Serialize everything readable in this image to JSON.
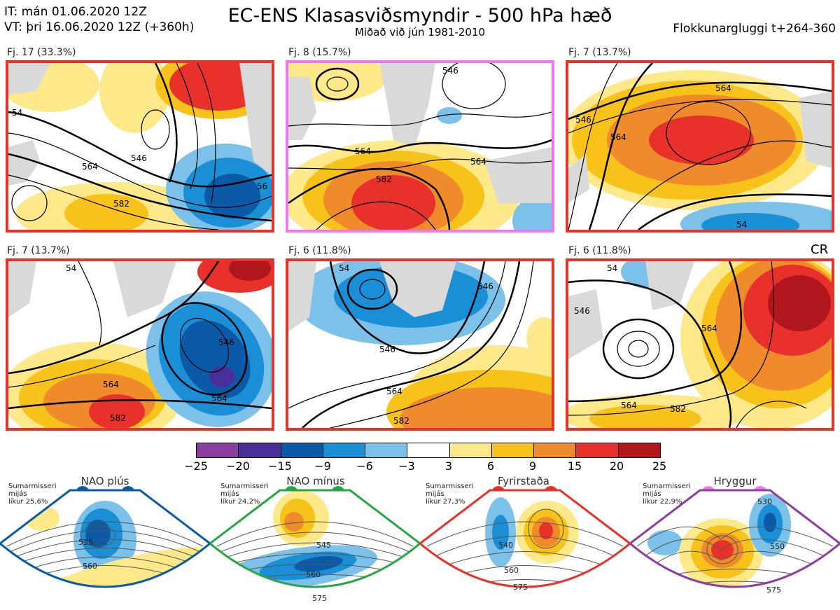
{
  "header": {
    "it_line": "IT: mán 01.06.2020 12Z",
    "vt_line": "VT: þri 16.06.2020 12Z  (+360h)",
    "title": "EC-ENS Klasasviðsmyndir - 500 hPa hæð",
    "subtitle": "Miðað við jún 1981-2010",
    "window": "Flokkunargluggi t+264-360"
  },
  "panels": [
    {
      "label": "Fj. 17 (33.3%)",
      "border": "#e8312a",
      "contours": [
        "546",
        "564",
        "582",
        "54",
        "56"
      ]
    },
    {
      "label": "Fj. 8 (15.7%)",
      "border": "#ee77ee",
      "contours": [
        "564",
        "582",
        "564",
        "546"
      ]
    },
    {
      "label": "Fj. 7 (13.7%)",
      "border": "#e8312a",
      "contours": [
        "564",
        "546",
        "564",
        "54"
      ]
    },
    {
      "label": "Fj. 7 (13.7%)",
      "border": "#e8312a",
      "contours": [
        "564",
        "546",
        "564",
        "582",
        "54"
      ]
    },
    {
      "label": "Fj. 6 (11.8%)",
      "border": "#e8312a",
      "contours": [
        "546",
        "564",
        "582",
        "546",
        "54"
      ]
    },
    {
      "label": "Fj. 6 (11.8%)",
      "border": "#e8312a",
      "contours": [
        "564",
        "546",
        "564",
        "582",
        "54"
      ],
      "tag": "CR"
    }
  ],
  "colorbar": {
    "ticks": [
      "−25",
      "−20",
      "−15",
      "−9",
      "−6",
      "−3",
      "3",
      "6",
      "9",
      "15",
      "20",
      "25"
    ],
    "colors": [
      "#8c3f9e",
      "#4a2f9a",
      "#0b5aa8",
      "#1b8fd6",
      "#7cc1ea",
      "#ffffff",
      "#fde98a",
      "#f7c21a",
      "#f08b2b",
      "#e8312a",
      "#b0161c"
    ]
  },
  "regimes": [
    {
      "title": "NAO plús",
      "line1": "Sumarmisseri",
      "line2": "mijás",
      "line3": "líkur 25,6%",
      "color": "#0b5aa8",
      "c1": "535",
      "c2": "560"
    },
    {
      "title": "NAO mínus",
      "line1": "Sumarmisseri",
      "line2": "mijás",
      "line3": "líkur 24,2%",
      "color": "#27a744",
      "c1": "545",
      "c2": "560",
      "c3": "575"
    },
    {
      "title": "Fyrirstaða",
      "line1": "Sumarmisseri",
      "line2": "mijás",
      "line3": "líkur 27,3%",
      "color": "#e8312a",
      "c1": "540",
      "c2": "560",
      "c3": "575"
    },
    {
      "title": "Hryggur",
      "line1": "Sumarmisseri",
      "line2": "mijás",
      "line3": "líkur 22,9%",
      "color": "#ee77ee",
      "c1": "530",
      "c2": "550",
      "c3": "575"
    }
  ]
}
